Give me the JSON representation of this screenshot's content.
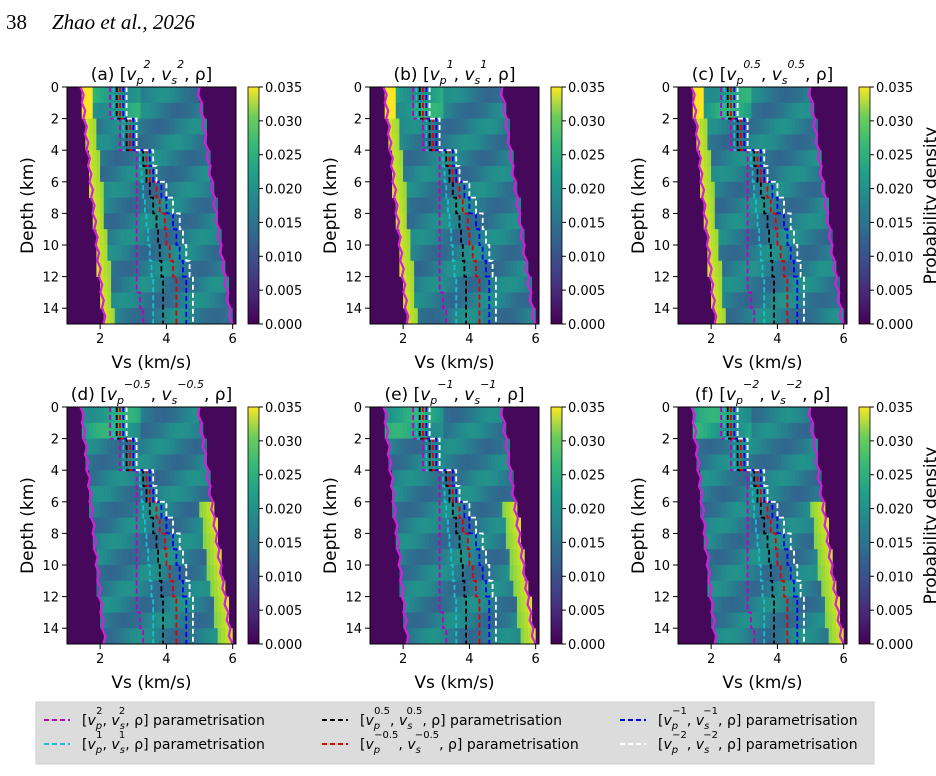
{
  "page": {
    "number": "38",
    "running_head": "Zhao et al., 2026"
  },
  "figure": {
    "panels": [
      {
        "id": "a",
        "title_prefix": "(a) [",
        "p1": "p",
        "s1": "2",
        "p2": "s",
        "s2": "2",
        "title_suffix": ", ρ]"
      },
      {
        "id": "b",
        "title_prefix": "(b) [",
        "p1": "p",
        "s1": "1",
        "p2": "s",
        "s2": "1",
        "title_suffix": ", ρ]"
      },
      {
        "id": "c",
        "title_prefix": "(c) [",
        "p1": "p",
        "s1": "0.5",
        "p2": "s",
        "s2": "0.5",
        "title_suffix": ", ρ]"
      },
      {
        "id": "d",
        "title_prefix": "(d) [",
        "p1": "p",
        "s1": "−0.5",
        "p2": "s",
        "s2": "−0.5",
        "title_suffix": ", ρ]"
      },
      {
        "id": "e",
        "title_prefix": "(e) [",
        "p1": "p",
        "s1": "−1",
        "p2": "s",
        "s2": "−1",
        "title_suffix": ", ρ]"
      },
      {
        "id": "f",
        "title_prefix": "(f) [",
        "p1": "p",
        "s1": "−2",
        "p2": "s",
        "s2": "−2",
        "title_suffix": ", ρ]"
      }
    ],
    "xlabel": "Vs (km/s)",
    "ylabel": "Depth (km)",
    "colorbar_label": "Probability density",
    "x_ticks": [
      "2",
      "4",
      "6"
    ],
    "y_ticks": [
      "0",
      "2",
      "4",
      "6",
      "8",
      "10",
      "12",
      "14"
    ],
    "cb_ticks": [
      "0.035",
      "0.030",
      "0.025",
      "0.020",
      "0.015",
      "0.010",
      "0.005",
      "0.000"
    ],
    "legend": [
      {
        "label_pre": "[",
        "e": "2",
        "label_post": ", ρ] parametrisation",
        "color": "#c000c0"
      },
      {
        "label_pre": "[",
        "e": "1",
        "label_post": ", ρ] parametrisation",
        "color": "#17becf"
      },
      {
        "label_pre": "[",
        "e": "0.5",
        "label_post": ", ρ] parametrisation",
        "color": "#000000"
      },
      {
        "label_pre": "[",
        "e": "−0.5",
        "label_post": ", ρ] parametrisation",
        "color": "#e00000"
      },
      {
        "label_pre": "[",
        "e": "−1",
        "label_post": ", ρ] parametrisation",
        "color": "#0000ff"
      },
      {
        "label_pre": "[",
        "e": "−2",
        "label_post": ", ρ] parametrisation",
        "color": "#ffffff"
      }
    ]
  },
  "chart_data": {
    "type": "heatmap",
    "x_range": [
      1,
      6.1
    ],
    "y_range": [
      0,
      15
    ],
    "y_inverted": true,
    "color_range": [
      0,
      0.035
    ],
    "colormap": "viridis",
    "prior_bounds": {
      "depth": [
        0,
        15
      ],
      "vs_min": [
        1.4,
        2.1
      ],
      "vs_max": [
        5.0,
        6.0
      ]
    },
    "true_models": [
      {
        "name": "e2",
        "color": "#c000c0",
        "vs": [
          2.3,
          2.3,
          2.6,
          2.6,
          3.1,
          3.1,
          3.1,
          3.1,
          3.1,
          3.1,
          3.1,
          3.1,
          3.1,
          3.2,
          3.3
        ]
      },
      {
        "name": "e1",
        "color": "#17becf",
        "vs": [
          2.4,
          2.4,
          2.7,
          2.7,
          3.2,
          3.25,
          3.3,
          3.35,
          3.4,
          3.45,
          3.5,
          3.55,
          3.6,
          3.6,
          3.6
        ]
      },
      {
        "name": "e0.5",
        "color": "#000000",
        "vs": [
          2.5,
          2.5,
          2.8,
          2.8,
          3.3,
          3.4,
          3.5,
          3.6,
          3.7,
          3.75,
          3.8,
          3.85,
          3.9,
          3.9,
          3.9
        ]
      },
      {
        "name": "e-0.5",
        "color": "#e00000",
        "vs": [
          2.6,
          2.6,
          2.9,
          2.9,
          3.4,
          3.5,
          3.7,
          3.8,
          3.95,
          4.0,
          4.1,
          4.2,
          4.3,
          4.3,
          4.3
        ]
      },
      {
        "name": "e-1",
        "color": "#0000ff",
        "vs": [
          2.7,
          2.7,
          3.0,
          3.0,
          3.5,
          3.6,
          3.85,
          4.0,
          4.2,
          4.3,
          4.4,
          4.5,
          4.6,
          4.6,
          4.6
        ]
      },
      {
        "name": "e-2",
        "color": "#ffffff",
        "vs": [
          2.8,
          2.8,
          3.1,
          3.1,
          3.6,
          3.7,
          4.0,
          4.2,
          4.4,
          4.5,
          4.6,
          4.7,
          4.8,
          4.8,
          4.8
        ]
      }
    ]
  }
}
